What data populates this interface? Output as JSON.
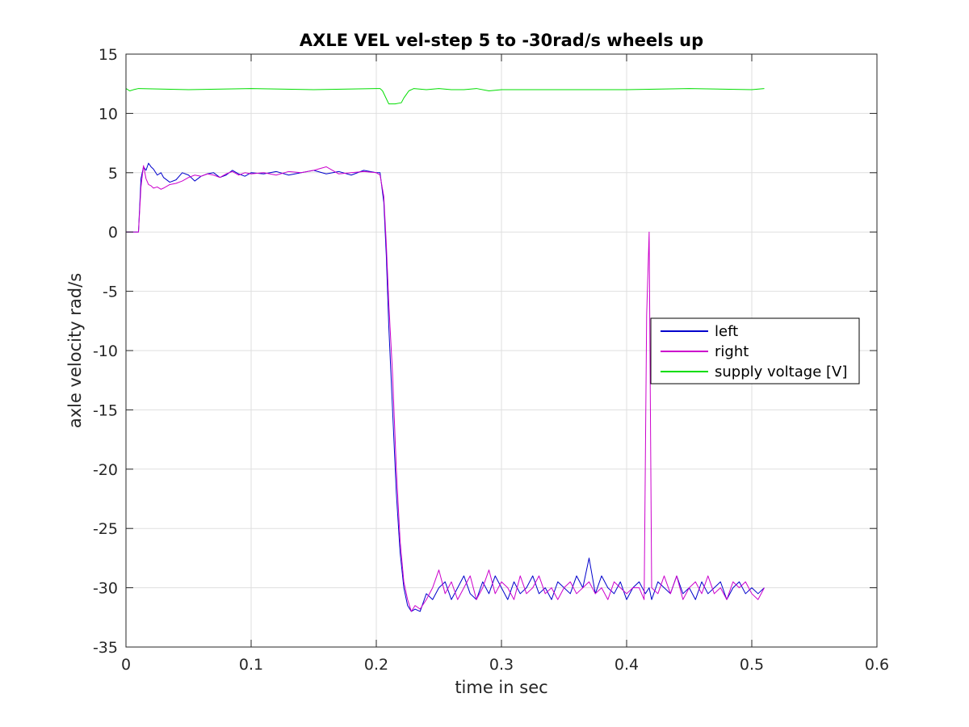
{
  "chart_data": {
    "type": "line",
    "title": "AXLE VEL vel-step 5 to -30rad/s wheels up",
    "xlabel": "time in sec",
    "ylabel": "axle velocity rad/s",
    "xlim": [
      0,
      0.6
    ],
    "ylim": [
      -35,
      15
    ],
    "xticks": [
      0,
      0.1,
      0.2,
      0.3,
      0.4,
      0.5,
      0.6
    ],
    "xtick_labels": [
      "0",
      "0.1",
      "0.2",
      "0.3",
      "0.4",
      "0.5",
      "0.6"
    ],
    "yticks": [
      -35,
      -30,
      -25,
      -20,
      -15,
      -10,
      -5,
      0,
      5,
      10,
      15
    ],
    "ytick_labels": [
      "-35",
      "-30",
      "-25",
      "-20",
      "-15",
      "-10",
      "-5",
      "0",
      "5",
      "10",
      "15"
    ],
    "grid": true,
    "legend_position": "right",
    "series": [
      {
        "name": "left",
        "color": "#0000cc",
        "x": [
          0,
          0.01,
          0.012,
          0.014,
          0.016,
          0.018,
          0.02,
          0.022,
          0.025,
          0.028,
          0.03,
          0.035,
          0.04,
          0.045,
          0.05,
          0.055,
          0.06,
          0.065,
          0.07,
          0.075,
          0.08,
          0.085,
          0.09,
          0.095,
          0.1,
          0.11,
          0.12,
          0.13,
          0.14,
          0.15,
          0.16,
          0.17,
          0.18,
          0.19,
          0.2,
          0.203,
          0.206,
          0.208,
          0.21,
          0.213,
          0.216,
          0.219,
          0.222,
          0.225,
          0.228,
          0.231,
          0.235,
          0.24,
          0.245,
          0.25,
          0.255,
          0.26,
          0.265,
          0.27,
          0.275,
          0.28,
          0.285,
          0.29,
          0.295,
          0.3,
          0.305,
          0.31,
          0.315,
          0.32,
          0.325,
          0.33,
          0.335,
          0.34,
          0.345,
          0.35,
          0.355,
          0.36,
          0.365,
          0.37,
          0.375,
          0.38,
          0.385,
          0.39,
          0.395,
          0.4,
          0.405,
          0.41,
          0.415,
          0.418,
          0.42,
          0.425,
          0.43,
          0.435,
          0.44,
          0.445,
          0.45,
          0.455,
          0.46,
          0.465,
          0.47,
          0.475,
          0.48,
          0.485,
          0.49,
          0.495,
          0.5,
          0.505,
          0.51
        ],
        "y": [
          0,
          0,
          4.5,
          5.5,
          5.2,
          5.8,
          5.5,
          5.3,
          4.8,
          5.0,
          4.6,
          4.2,
          4.4,
          5.0,
          4.8,
          4.3,
          4.7,
          4.9,
          5.0,
          4.6,
          4.8,
          5.2,
          4.9,
          4.7,
          5.0,
          4.9,
          5.1,
          4.8,
          5.0,
          5.2,
          4.9,
          5.1,
          4.8,
          5.2,
          5.0,
          5.0,
          2.5,
          -2.0,
          -8.0,
          -15.0,
          -22.0,
          -27.0,
          -30.0,
          -31.5,
          -32.0,
          -31.8,
          -32.0,
          -30.5,
          -31.0,
          -30.0,
          -29.5,
          -31.0,
          -30.0,
          -29.0,
          -30.5,
          -31.0,
          -29.5,
          -30.5,
          -29.0,
          -30.0,
          -31.0,
          -29.5,
          -30.5,
          -30.0,
          -29.0,
          -30.5,
          -30.0,
          -31.0,
          -29.5,
          -30.0,
          -30.5,
          -29.0,
          -30.0,
          -27.5,
          -30.5,
          -29.0,
          -30.0,
          -30.5,
          -29.5,
          -31.0,
          -30.0,
          -29.5,
          -30.5,
          -30.0,
          -31.0,
          -29.5,
          -30.0,
          -30.5,
          -29.0,
          -30.5,
          -30.0,
          -31.0,
          -29.5,
          -30.5,
          -30.0,
          -29.5,
          -31.0,
          -30.0,
          -29.5,
          -30.5,
          -30.0,
          -30.5,
          -30.0
        ]
      },
      {
        "name": "right",
        "color": "#cc00cc",
        "x": [
          0,
          0.01,
          0.012,
          0.014,
          0.016,
          0.018,
          0.02,
          0.022,
          0.025,
          0.028,
          0.03,
          0.035,
          0.04,
          0.045,
          0.05,
          0.055,
          0.06,
          0.065,
          0.07,
          0.075,
          0.08,
          0.085,
          0.09,
          0.095,
          0.1,
          0.11,
          0.12,
          0.13,
          0.14,
          0.15,
          0.16,
          0.17,
          0.18,
          0.19,
          0.2,
          0.203,
          0.206,
          0.208,
          0.21,
          0.213,
          0.216,
          0.219,
          0.222,
          0.225,
          0.228,
          0.231,
          0.235,
          0.24,
          0.245,
          0.25,
          0.255,
          0.26,
          0.265,
          0.27,
          0.275,
          0.28,
          0.285,
          0.29,
          0.295,
          0.3,
          0.305,
          0.31,
          0.315,
          0.32,
          0.325,
          0.33,
          0.335,
          0.34,
          0.345,
          0.35,
          0.355,
          0.36,
          0.365,
          0.37,
          0.375,
          0.38,
          0.385,
          0.39,
          0.395,
          0.4,
          0.405,
          0.41,
          0.414,
          0.416,
          0.418,
          0.42,
          0.425,
          0.43,
          0.435,
          0.44,
          0.445,
          0.45,
          0.455,
          0.46,
          0.465,
          0.47,
          0.475,
          0.48,
          0.485,
          0.49,
          0.495,
          0.5,
          0.505,
          0.51
        ],
        "y": [
          0,
          0,
          3.8,
          5.6,
          4.5,
          4.0,
          3.9,
          3.7,
          3.8,
          3.6,
          3.7,
          4.0,
          4.1,
          4.3,
          4.6,
          4.8,
          4.7,
          4.9,
          4.8,
          4.6,
          4.9,
          5.1,
          4.8,
          5.0,
          4.9,
          5.0,
          4.8,
          5.1,
          5.0,
          5.2,
          5.5,
          4.9,
          5.0,
          5.1,
          5.0,
          4.8,
          3.0,
          -1.0,
          -6.0,
          -12.0,
          -20.0,
          -26.0,
          -29.5,
          -31.0,
          -32.0,
          -31.5,
          -31.8,
          -31.0,
          -30.0,
          -28.5,
          -30.5,
          -29.5,
          -31.0,
          -30.0,
          -29.0,
          -31.0,
          -30.0,
          -28.5,
          -30.5,
          -29.5,
          -30.0,
          -31.0,
          -29.0,
          -30.5,
          -30.0,
          -29.0,
          -30.5,
          -30.0,
          -31.0,
          -30.0,
          -29.5,
          -30.5,
          -30.0,
          -29.5,
          -30.5,
          -30.0,
          -31.0,
          -29.5,
          -30.0,
          -30.5,
          -30.0,
          -30.0,
          -31.0,
          -7.0,
          0,
          -30.0,
          -30.5,
          -29.0,
          -30.5,
          -29.0,
          -31.0,
          -30.0,
          -29.5,
          -30.5,
          -29.0,
          -30.5,
          -30.0,
          -31.0,
          -29.5,
          -30.0,
          -29.5,
          -30.5,
          -31.0,
          -30.0
        ]
      },
      {
        "name": "supply voltage [V]",
        "color": "#00dd00",
        "x": [
          0,
          0.003,
          0.006,
          0.01,
          0.05,
          0.1,
          0.15,
          0.2,
          0.203,
          0.205,
          0.21,
          0.212,
          0.215,
          0.22,
          0.222,
          0.224,
          0.226,
          0.228,
          0.23,
          0.24,
          0.25,
          0.26,
          0.27,
          0.28,
          0.29,
          0.3,
          0.35,
          0.4,
          0.45,
          0.5,
          0.51
        ],
        "y": [
          12.1,
          11.9,
          12.0,
          12.1,
          12.0,
          12.1,
          12.0,
          12.1,
          12.1,
          11.9,
          10.8,
          10.8,
          10.8,
          10.9,
          11.3,
          11.6,
          11.9,
          12.0,
          12.1,
          12.0,
          12.1,
          12.0,
          12.0,
          12.1,
          11.9,
          12.0,
          12.0,
          12.0,
          12.1,
          12.0,
          12.1
        ]
      }
    ]
  }
}
